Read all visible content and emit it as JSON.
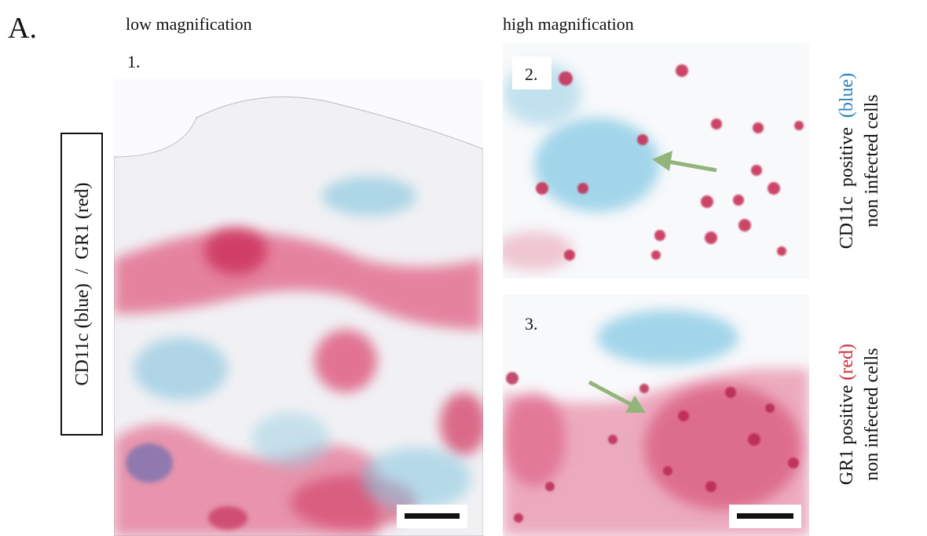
{
  "panel_label": "A.",
  "column_titles": {
    "left": "low magnification",
    "right": "high magnification"
  },
  "images": [
    {
      "label": "1."
    },
    {
      "label": "2."
    },
    {
      "label": "3."
    }
  ],
  "side_label": "CD11c (blue)  /  GR1 (red)",
  "annotations": [
    {
      "prefix": "CD11c  positive  ",
      "highlight": "(blue)",
      "highlight_color": "#2a7fc0",
      "second_line": "non infected cells"
    },
    {
      "prefix": "GR1 positive ",
      "highlight": "(red)",
      "highlight_color": "#d0303a",
      "second_line": "non infected cells"
    }
  ]
}
